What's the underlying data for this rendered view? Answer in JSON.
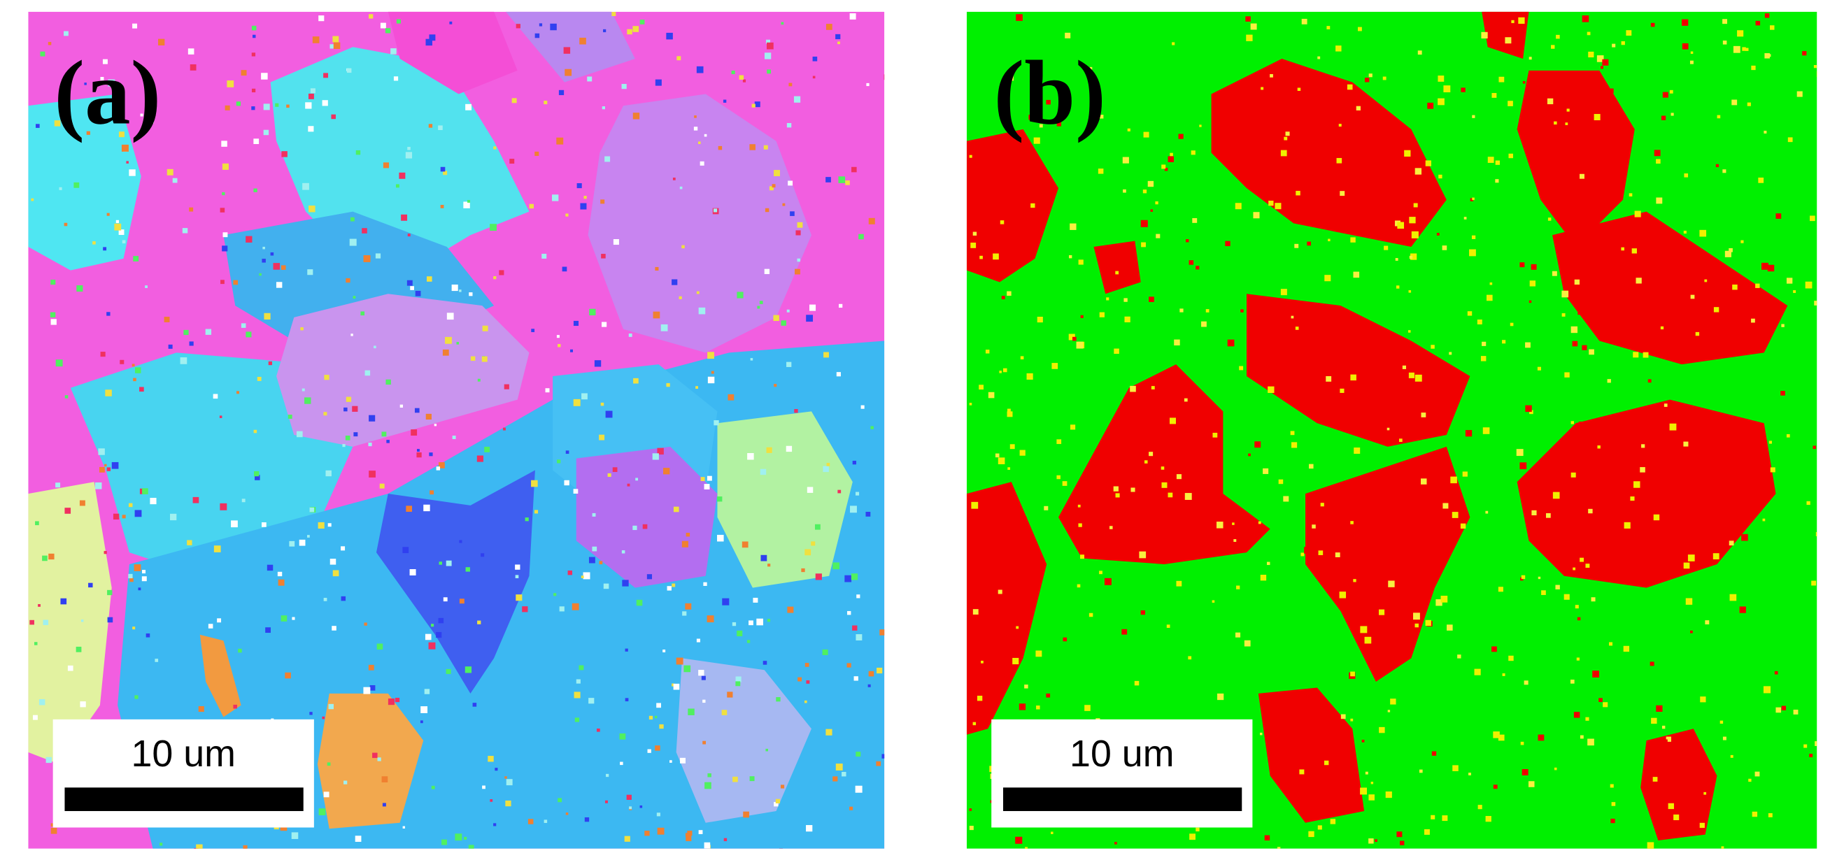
{
  "panels": [
    {
      "label": "(a)",
      "scale_bar": "10 um"
    },
    {
      "label": "(b)",
      "scale_bar": "10 um"
    }
  ]
}
